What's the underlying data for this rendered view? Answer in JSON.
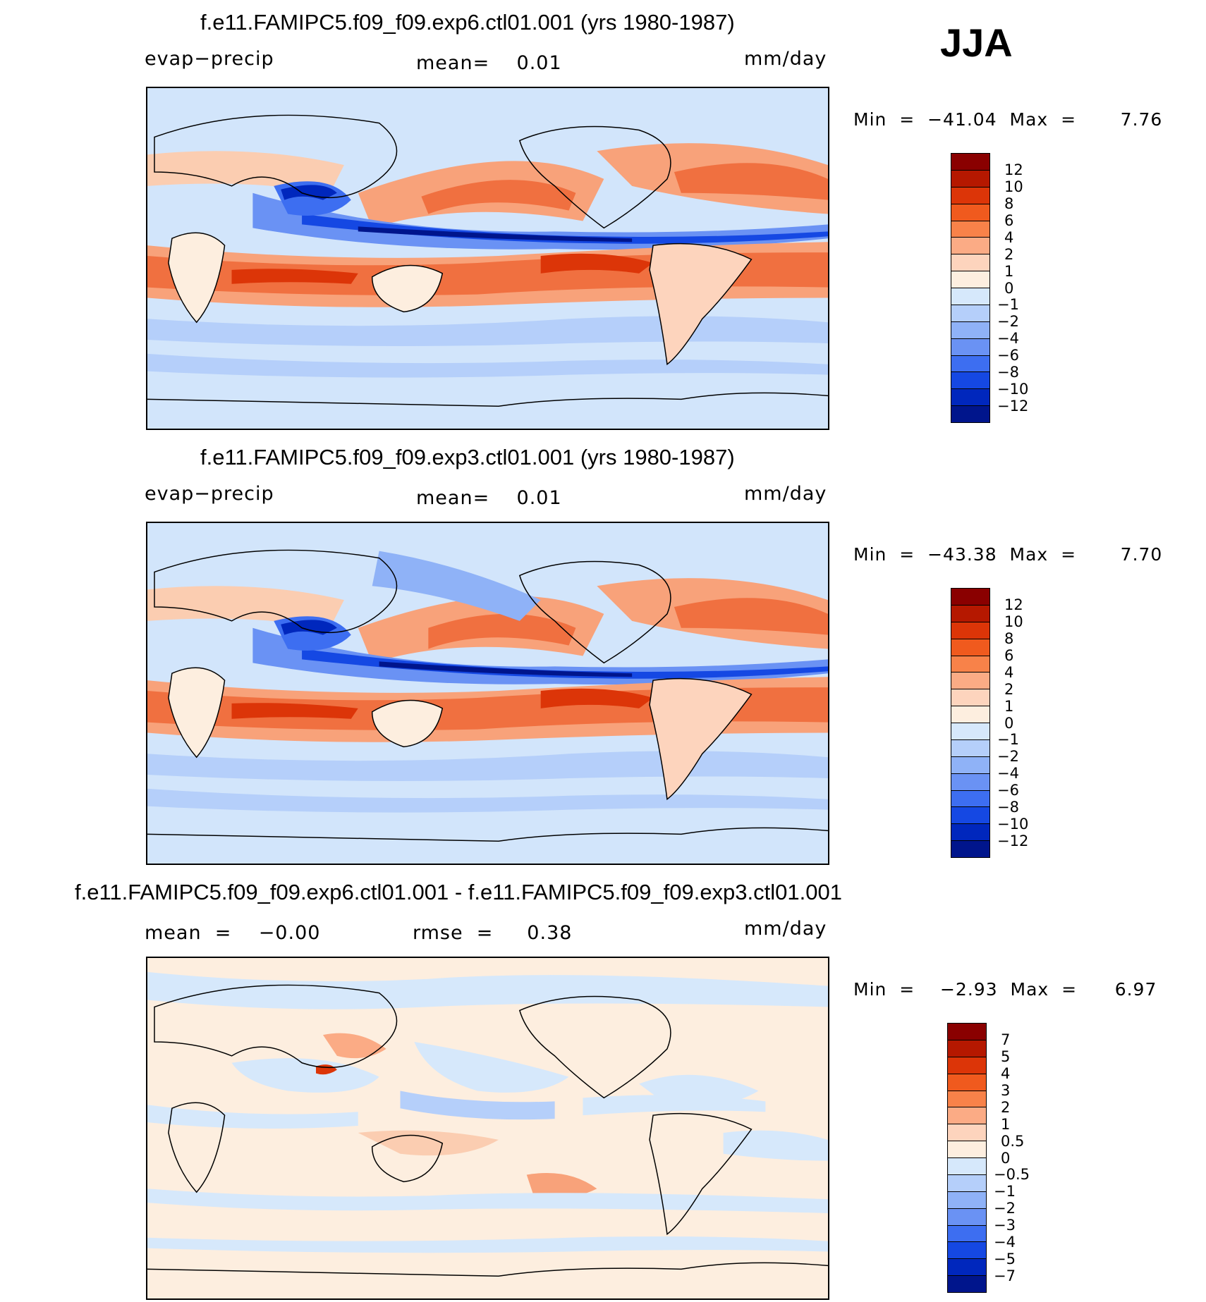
{
  "season": "JJA",
  "panels": [
    {
      "title": "f.e11.FAMIPC5.f09_f09.exp6.ctl01.001 (yrs 1980-1987)",
      "left_label": "evap−precip",
      "center_label": "mean=    0.01",
      "units": "mm/day",
      "minmax": "Min  =  −41.04  Max  =       7.76",
      "colorbar": {
        "labels": [
          "12",
          "10",
          "8",
          "6",
          "4",
          "2",
          "1",
          "0",
          "−1",
          "−2",
          "−4",
          "−6",
          "−8",
          "−10",
          "−12"
        ],
        "colors": [
          "#8a0000",
          "#b51800",
          "#dc3508",
          "#f05a1e",
          "#f88249",
          "#fbab85",
          "#fdd4bd",
          "#fdeedf",
          "#d6e8fb",
          "#b5cffa",
          "#8fb2f7",
          "#6a92f4",
          "#3d6ef1",
          "#1548e3",
          "#0027bd",
          "#00158c"
        ]
      }
    },
    {
      "title": "f.e11.FAMIPC5.f09_f09.exp3.ctl01.001 (yrs 1980-1987)",
      "left_label": "evap−precip",
      "center_label": "mean=    0.01",
      "units": "mm/day",
      "minmax": "Min  =  −43.38  Max  =       7.70",
      "colorbar": {
        "labels": [
          "12",
          "10",
          "8",
          "6",
          "4",
          "2",
          "1",
          "0",
          "−1",
          "−2",
          "−4",
          "−6",
          "−8",
          "−10",
          "−12"
        ],
        "colors": [
          "#8a0000",
          "#b51800",
          "#dc3508",
          "#f05a1e",
          "#f88249",
          "#fbab85",
          "#fdd4bd",
          "#fdeedf",
          "#d6e8fb",
          "#b5cffa",
          "#8fb2f7",
          "#6a92f4",
          "#3d6ef1",
          "#1548e3",
          "#0027bd",
          "#00158c"
        ]
      }
    },
    {
      "title": "f.e11.FAMIPC5.f09_f09.exp6.ctl01.001 - f.e11.FAMIPC5.f09_f09.exp3.ctl01.001",
      "left_label": "mean  =    −0.00",
      "center_label": "rmse  =     0.38",
      "units": "mm/day",
      "minmax": "Min  =    −2.93  Max  =      6.97",
      "colorbar": {
        "labels": [
          "7",
          "5",
          "4",
          "3",
          "2",
          "1",
          "0.5",
          "0",
          "−0.5",
          "−1",
          "−2",
          "−3",
          "−4",
          "−5",
          "−7"
        ],
        "colors": [
          "#8a0000",
          "#b51800",
          "#dc3508",
          "#f05a1e",
          "#f88249",
          "#fbab85",
          "#fdd4bd",
          "#fdeedf",
          "#d6e8fb",
          "#b5cffa",
          "#8fb2f7",
          "#6a92f4",
          "#3d6ef1",
          "#1548e3",
          "#0027bd",
          "#00158c"
        ]
      }
    }
  ]
}
